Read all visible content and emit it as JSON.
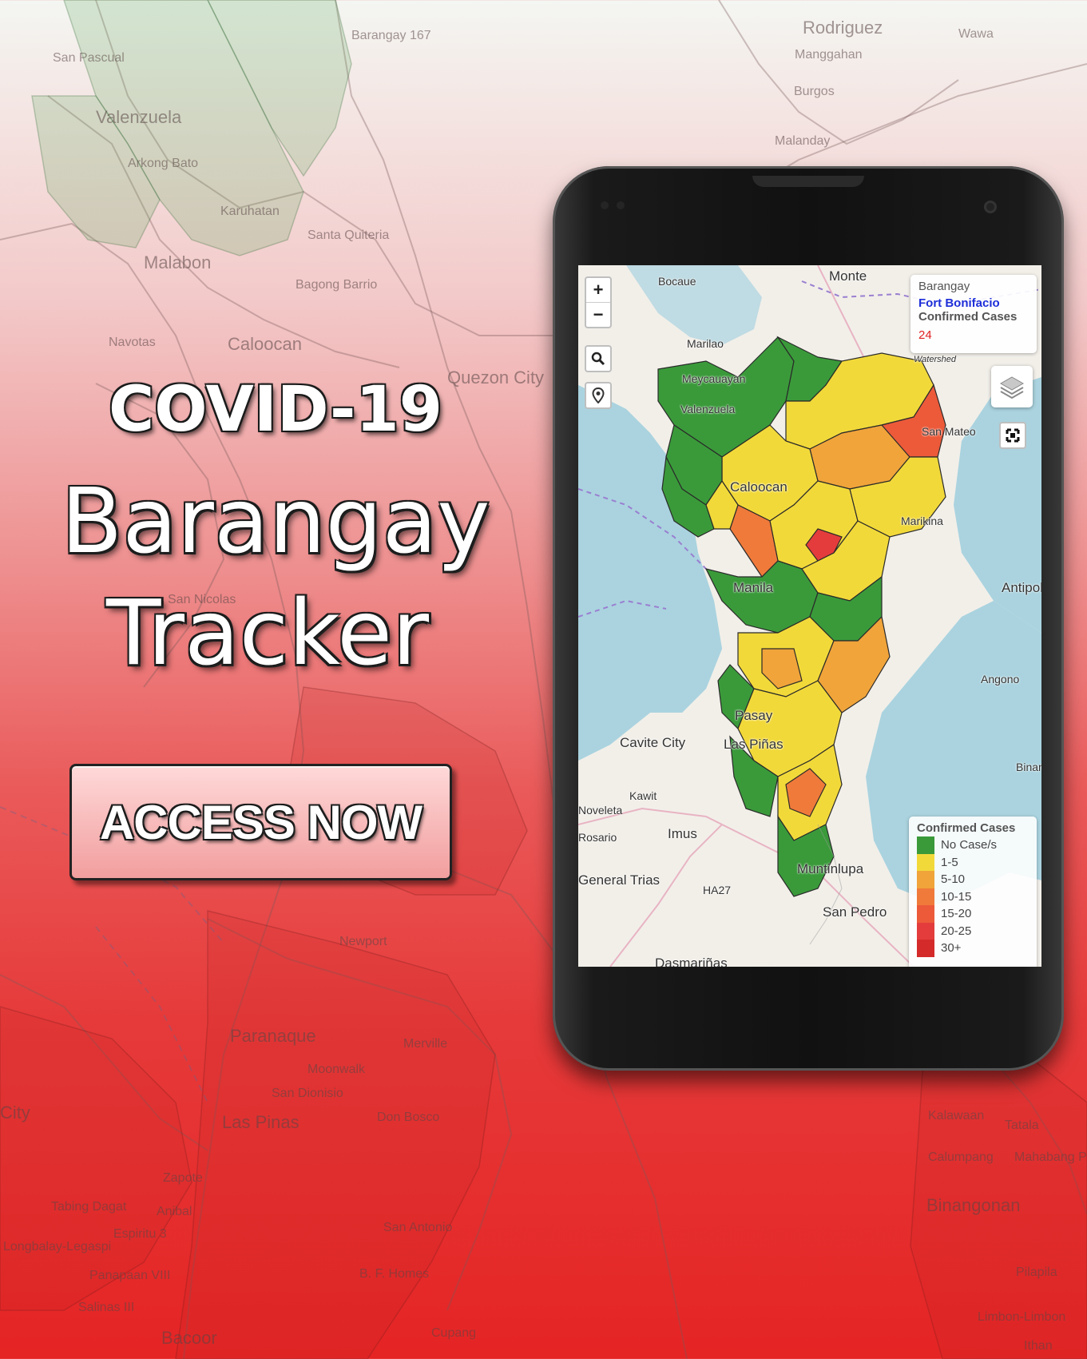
{
  "background_labels": [
    {
      "text": "Barangay 167"
    },
    {
      "text": "San Pascual"
    },
    {
      "text": "Valenzuela"
    },
    {
      "text": "Arkong Bato"
    },
    {
      "text": "Karuhatan"
    },
    {
      "text": "Santa Quiteria"
    },
    {
      "text": "Malabon"
    },
    {
      "text": "Bagong Barrio"
    },
    {
      "text": "Caloocan"
    },
    {
      "text": "Navotas"
    },
    {
      "text": "Quezon City"
    },
    {
      "text": "Rodriguez"
    },
    {
      "text": "Wawa"
    },
    {
      "text": "Manggahan"
    },
    {
      "text": "Burgos"
    },
    {
      "text": "Malanday"
    },
    {
      "text": "San Nicolas"
    },
    {
      "text": "Newport"
    },
    {
      "text": "Paranaque"
    },
    {
      "text": "Merville"
    },
    {
      "text": "Moonwalk"
    },
    {
      "text": "San Dionisio"
    },
    {
      "text": "Don Bosco"
    },
    {
      "text": "Las Pinas"
    },
    {
      "text": "Zapote"
    },
    {
      "text": "Tabing Dagat"
    },
    {
      "text": "Anibal"
    },
    {
      "text": "Espiritu 3"
    },
    {
      "text": "Longbalay-Legaspi"
    },
    {
      "text": "Panapaan VIII"
    },
    {
      "text": "Salinas III"
    },
    {
      "text": "Bacoor"
    },
    {
      "text": "B. F. Homes"
    },
    {
      "text": "San Antonio"
    },
    {
      "text": "Kalawaan"
    },
    {
      "text": "Tatala"
    },
    {
      "text": "Calumpang"
    },
    {
      "text": "Mahabang Parang"
    },
    {
      "text": "Binangonan"
    },
    {
      "text": "Pilapila"
    },
    {
      "text": "Limbon-Limbon"
    },
    {
      "text": "Ithan"
    },
    {
      "text": "Cupang"
    },
    {
      "text": "City"
    }
  ],
  "headline": {
    "line1": "COVID-19",
    "line2": "Barangay",
    "line3": "Tracker"
  },
  "cta": {
    "label": "ACCESS NOW"
  },
  "map": {
    "controls": {
      "zoom_in": "+",
      "zoom_out": "−"
    },
    "labels": [
      {
        "text": "Bocaue"
      },
      {
        "text": "Monte"
      },
      {
        "text": "Marilao"
      },
      {
        "text": "Meycauayan"
      },
      {
        "text": "Valenzuela"
      },
      {
        "text": "San Mateo"
      },
      {
        "text": "Caloocan"
      },
      {
        "text": "Marikina"
      },
      {
        "text": "Manila"
      },
      {
        "text": "Antipolo"
      },
      {
        "text": "Angono"
      },
      {
        "text": "Pasay"
      },
      {
        "text": "Cavite City"
      },
      {
        "text": "Las Piñas"
      },
      {
        "text": "Kawit"
      },
      {
        "text": "Noveleta"
      },
      {
        "text": "Imus"
      },
      {
        "text": "Rosario"
      },
      {
        "text": "General Trias"
      },
      {
        "text": "HA27"
      },
      {
        "text": "Muntinlupa"
      },
      {
        "text": "San Pedro"
      },
      {
        "text": "Dasmariñas"
      },
      {
        "text": "Binangonan"
      },
      {
        "text": "Watershed"
      }
    ],
    "info": {
      "title": "Barangay",
      "name": "Fort Bonifacio",
      "cases_label": "Confirmed Cases",
      "cases_value": "24"
    },
    "legend": {
      "title": "Confirmed Cases",
      "items": [
        {
          "label": "No Case/s",
          "color": "#3a9a3a"
        },
        {
          "label": "1-5",
          "color": "#f2d93a"
        },
        {
          "label": "5-10",
          "color": "#f0a43a"
        },
        {
          "label": "10-15",
          "color": "#f07a3a"
        },
        {
          "label": "15-20",
          "color": "#ec5a3a"
        },
        {
          "label": "20-25",
          "color": "#e43c3c"
        },
        {
          "label": "30+",
          "color": "#d42a2a"
        }
      ]
    }
  },
  "colors": {
    "accent": "#e52424",
    "button_fill": "#f7b8b8",
    "phone_body": "#111111",
    "water": "#aad3df",
    "land": "#f2efe9"
  }
}
